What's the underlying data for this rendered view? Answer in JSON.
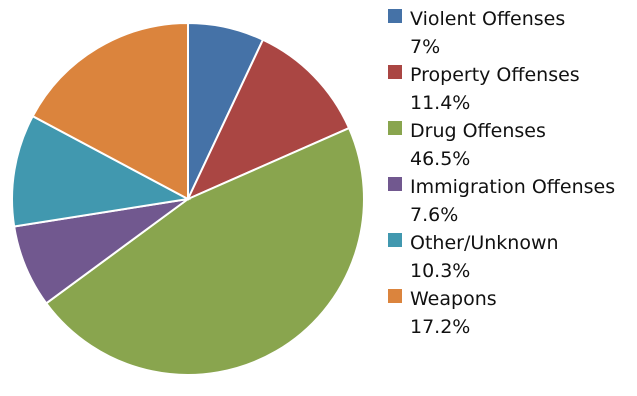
{
  "chart_data": {
    "type": "pie",
    "title": "",
    "legend_position": "right",
    "slices": [
      {
        "label": "Violent Offenses",
        "value": 7,
        "value_label": "7%",
        "color": "#4572a7"
      },
      {
        "label": "Property Offenses",
        "value": 11.4,
        "value_label": "11.4%",
        "color": "#aa4643"
      },
      {
        "label": "Drug Offenses",
        "value": 46.5,
        "value_label": "46.5%",
        "color": "#89a54e"
      },
      {
        "label": "Immigration Offenses",
        "value": 7.6,
        "value_label": "7.6%",
        "color": "#71588f"
      },
      {
        "label": "Other/Unknown",
        "value": 10.3,
        "value_label": "10.3%",
        "color": "#4198af"
      },
      {
        "label": "Weapons",
        "value": 17.2,
        "value_label": "17.2%",
        "color": "#db843d"
      }
    ]
  }
}
